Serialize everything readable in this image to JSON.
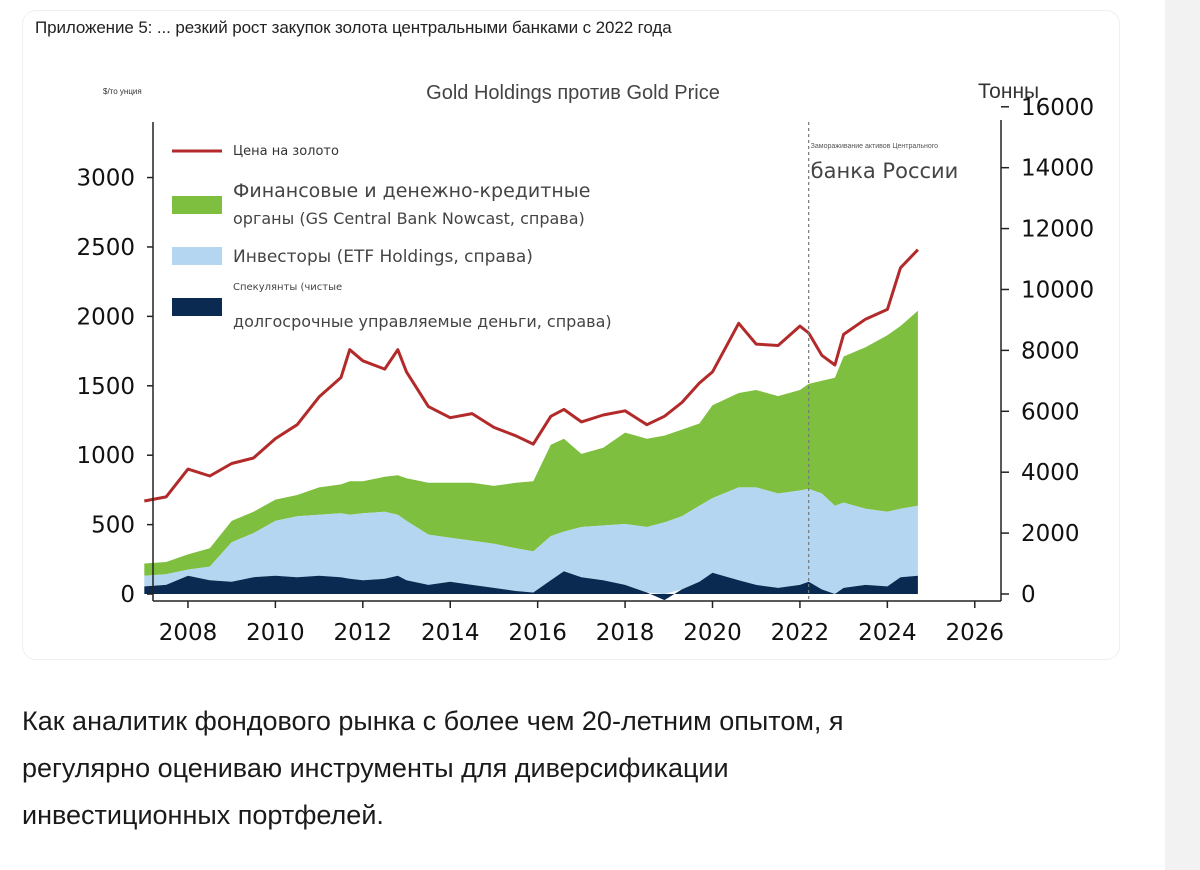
{
  "figure": {
    "caption": "Приложение 5: ... резкий рост закупок золота центральными банками с 2022 года"
  },
  "chart_data": {
    "type": "area",
    "title": "Gold Holdings против Gold Price",
    "left_axis_label": "$/то унция",
    "right_axis_label": "Тонны",
    "xlim": [
      2007.2,
      2026.6
    ],
    "left_ylim": [
      -50,
      3400
    ],
    "right_ylim": [
      -230,
      15500
    ],
    "x_ticks": [
      "2008",
      "2010",
      "2012",
      "2014",
      "2016",
      "2018",
      "2020",
      "2022",
      "2024",
      "2026"
    ],
    "left_ticks": [
      "0",
      "500",
      "1000",
      "1500",
      "2000",
      "2500",
      "3000"
    ],
    "right_ticks": [
      "0",
      "2000",
      "4000",
      "6000",
      "8000",
      "10000",
      "12000",
      "14000",
      "16000"
    ],
    "annotation": {
      "x": 2022.2,
      "small_text": "Замораживание активов Центрального",
      "text": "банка России"
    },
    "legend": [
      {
        "kind": "line",
        "color": "#b22a2a",
        "lines": [
          "Цена на золото"
        ],
        "size": "small"
      },
      {
        "kind": "box",
        "color": "#7fbf3f",
        "lines": [
          "Финансовые и денежно-кредитные",
          "органы (GS Central Bank Nowcast, справа)"
        ],
        "size": "large"
      },
      {
        "kind": "box",
        "color": "#b5d6f0",
        "lines": [
          "Инвесторы (ETF Holdings, справа)"
        ],
        "size": "large"
      },
      {
        "kind": "box",
        "color": "#0b2a52",
        "lines": [
          "Спекулянты (чистые",
          "долгосрочные управляемые деньги, справа)"
        ],
        "size": "mixed"
      }
    ],
    "x": [
      2007.0,
      2007.5,
      2008.0,
      2008.5,
      2009.0,
      2009.5,
      2010.0,
      2010.5,
      2011.0,
      2011.5,
      2011.7,
      2012.0,
      2012.5,
      2012.8,
      2013.0,
      2013.5,
      2014.0,
      2014.5,
      2015.0,
      2015.5,
      2015.9,
      2016.3,
      2016.6,
      2017.0,
      2017.5,
      2018.0,
      2018.5,
      2018.9,
      2019.3,
      2019.7,
      2020.0,
      2020.6,
      2021.0,
      2021.5,
      2022.0,
      2022.2,
      2022.5,
      2022.8,
      2023.0,
      2023.5,
      2024.0,
      2024.3,
      2024.7
    ],
    "series": [
      {
        "name": "Цена на золото",
        "axis": "left",
        "color": "#b22a2a",
        "values": [
          670,
          700,
          900,
          850,
          940,
          980,
          1120,
          1220,
          1420,
          1560,
          1760,
          1680,
          1620,
          1760,
          1600,
          1350,
          1270,
          1300,
          1200,
          1140,
          1080,
          1280,
          1330,
          1240,
          1290,
          1320,
          1220,
          1280,
          1380,
          1520,
          1600,
          1950,
          1800,
          1790,
          1930,
          1880,
          1720,
          1650,
          1870,
          1980,
          2050,
          2350,
          2480
        ]
      },
      {
        "name": "Финансовые и денежно-кредитные органы (GS Central Bank Nowcast, справа)",
        "axis": "right",
        "color": "#7fbf3f",
        "values": [
          1000,
          1050,
          1300,
          1500,
          2400,
          2700,
          3100,
          3250,
          3500,
          3600,
          3700,
          3700,
          3850,
          3900,
          3800,
          3650,
          3650,
          3650,
          3550,
          3650,
          3700,
          4900,
          5100,
          4600,
          4800,
          5300,
          5100,
          5200,
          5400,
          5600,
          6200,
          6600,
          6700,
          6500,
          6700,
          6900,
          7000,
          7100,
          7800,
          8100,
          8500,
          8800,
          9300
        ]
      },
      {
        "name": "Инвесторы (ETF Holdings, справа)",
        "axis": "right",
        "color": "#b5d6f0",
        "values": [
          600,
          650,
          800,
          900,
          1700,
          2000,
          2400,
          2550,
          2600,
          2650,
          2600,
          2650,
          2700,
          2600,
          2400,
          1950,
          1850,
          1750,
          1650,
          1500,
          1400,
          1900,
          2050,
          2200,
          2250,
          2300,
          2200,
          2350,
          2550,
          2900,
          3150,
          3500,
          3500,
          3300,
          3400,
          3450,
          3300,
          2900,
          3000,
          2800,
          2700,
          2800,
          2900
        ]
      },
      {
        "name": "Спекулянты (чистые долгосрочные управляемые деньги, справа)",
        "axis": "right",
        "color": "#0b2a52",
        "values": [
          250,
          300,
          600,
          450,
          400,
          550,
          600,
          550,
          600,
          550,
          500,
          450,
          500,
          600,
          450,
          300,
          400,
          300,
          200,
          100,
          50,
          450,
          750,
          550,
          450,
          300,
          50,
          -200,
          150,
          400,
          700,
          450,
          300,
          200,
          300,
          400,
          150,
          0,
          200,
          300,
          250,
          550,
          600
        ]
      }
    ]
  },
  "article": {
    "lines": [
      "Как аналитик фондового рынка с более чем 20-летним опытом, я",
      "регулярно оцениваю инструменты для диверсификации",
      "инвестиционных портфелей."
    ]
  }
}
